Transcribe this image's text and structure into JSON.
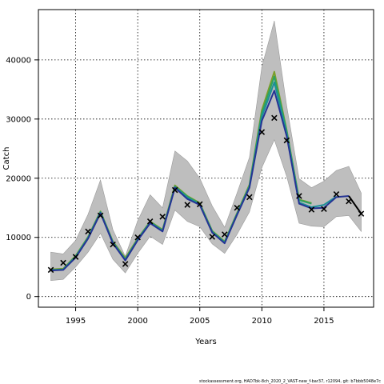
{
  "chart_data": {
    "type": "line",
    "title": "",
    "xlabel": "Years",
    "ylabel": "Catch",
    "xlim": [
      1992,
      2019
    ],
    "ylim": [
      -1800,
      48500
    ],
    "x_ticks": [
      1995,
      2000,
      2005,
      2010,
      2015
    ],
    "y_ticks": [
      0,
      10000,
      20000,
      30000,
      40000
    ],
    "x_tick_labels": [
      "1995",
      "2000",
      "2005",
      "2010",
      "2015"
    ],
    "y_tick_labels": [
      "0",
      "10000",
      "20000",
      "30000",
      "40000"
    ],
    "grid": true,
    "observed": {
      "marker": "x",
      "x": [
        1993,
        1994,
        1995,
        1996,
        1997,
        1998,
        1999,
        2000,
        2001,
        2002,
        2003,
        2004,
        2005,
        2006,
        2007,
        2008,
        2009,
        2010,
        2011,
        2012,
        2013,
        2014,
        2015,
        2016,
        2017,
        2018
      ],
      "y": [
        4500,
        5700,
        6700,
        11000,
        13700,
        8800,
        5500,
        10000,
        12700,
        13500,
        18000,
        15500,
        15600,
        10100,
        10500,
        15000,
        16800,
        27800,
        30200,
        26400,
        17000,
        14700,
        14800,
        17300,
        16100,
        14000
      ]
    },
    "uncertainty_band": {
      "color": "#bebebe",
      "x": [
        1993,
        1994,
        1995,
        1996,
        1997,
        1998,
        1999,
        2000,
        2001,
        2002,
        2003,
        2004,
        2005,
        2006,
        2007,
        2008,
        2009,
        2010,
        2011,
        2012,
        2013,
        2014,
        2015,
        2016,
        2017,
        2018
      ],
      "lower": [
        2700,
        2900,
        5000,
        7500,
        10700,
        6300,
        4000,
        7300,
        10200,
        8800,
        14600,
        12700,
        11800,
        8900,
        7300,
        10500,
        14300,
        21800,
        26500,
        20300,
        12400,
        11900,
        11800,
        13500,
        13700,
        11000
      ],
      "upper": [
        7500,
        7200,
        9500,
        13900,
        19700,
        11300,
        6800,
        12800,
        17200,
        15000,
        24600,
        22900,
        20000,
        15300,
        11700,
        17500,
        23500,
        38800,
        46600,
        32200,
        19900,
        18400,
        19500,
        21300,
        22000,
        17500
      ]
    },
    "series": [
      {
        "color": "#7a9e2a",
        "x": [
          1993,
          1994,
          1995,
          1996,
          1997,
          1998,
          1999,
          2000,
          2001,
          2002,
          2003,
          2004,
          2005,
          2006,
          2007,
          2008,
          2009,
          2010,
          2011,
          2012,
          2013,
          2014
        ],
        "values": [
          4600,
          4700,
          6900,
          10100,
          14400,
          9300,
          6500,
          9800,
          12700,
          11300,
          18800,
          17000,
          15800,
          11100,
          9300,
          14100,
          18900,
          31500,
          38000,
          28100,
          16400,
          15800
        ]
      },
      {
        "color": "#2ca25f",
        "x": [
          1993,
          1994,
          1995,
          1996,
          1997,
          1998,
          1999,
          2000,
          2001,
          2002,
          2003,
          2004,
          2005,
          2006,
          2007,
          2008,
          2009,
          2010,
          2011,
          2012,
          2013,
          2014
        ],
        "values": [
          4500,
          4600,
          6800,
          10000,
          14300,
          9200,
          6300,
          9700,
          12600,
          11200,
          18600,
          16900,
          15700,
          11000,
          9200,
          14000,
          18700,
          31000,
          37200,
          27900,
          16300,
          15700
        ]
      },
      {
        "color": "#1c9099",
        "x": [
          1993,
          1994,
          1995,
          1996,
          1997,
          1998,
          1999,
          2000,
          2001,
          2002,
          2003,
          2004,
          2005,
          2006,
          2007,
          2008,
          2009,
          2010,
          2011,
          2012,
          2013,
          2014,
          2015,
          2016
        ],
        "values": [
          4450,
          4550,
          6700,
          9900,
          14200,
          9100,
          6200,
          9600,
          12500,
          11100,
          18500,
          16700,
          15600,
          10900,
          9100,
          13900,
          18600,
          30400,
          36200,
          27500,
          15900,
          15100,
          15500,
          16900
        ]
      },
      {
        "color": "#253494",
        "x": [
          1993,
          1994,
          1995,
          1996,
          1997,
          1998,
          1999,
          2000,
          2001,
          2002,
          2003,
          2004,
          2005,
          2006,
          2007,
          2008,
          2009,
          2010,
          2011,
          2012,
          2013,
          2014,
          2015,
          2016,
          2017
        ],
        "values": [
          4400,
          4500,
          6600,
          9800,
          14100,
          9000,
          6100,
          9500,
          12400,
          11000,
          18400,
          16500,
          15500,
          10800,
          9000,
          13800,
          18400,
          29700,
          34800,
          27100,
          15700,
          14900,
          15000,
          16800,
          17000
        ]
      },
      {
        "color": "#000000",
        "x": [
          2017,
          2018
        ],
        "values": [
          17000,
          14000
        ]
      }
    ]
  },
  "footer": "stockassessment.org, HAD7bk-8ch_2020_2_VAST-new_f-bar37, r12094, git: b7bbb5048e7c"
}
